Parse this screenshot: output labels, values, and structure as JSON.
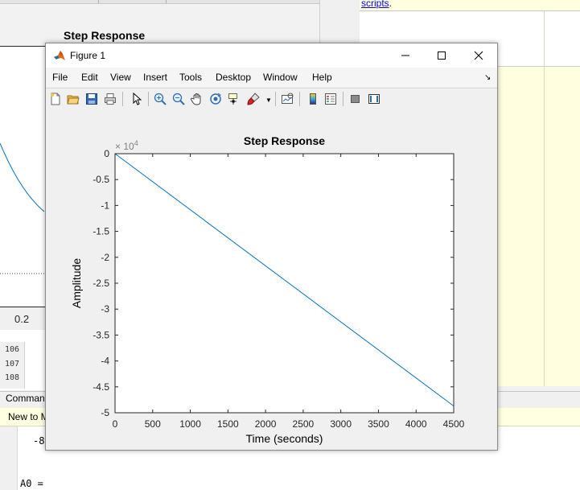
{
  "background": {
    "figure_title": "Step Response",
    "x_tick_visible": "0.2",
    "editor_line_numbers": [
      "106",
      "107",
      "108"
    ],
    "command_window_tab": "Comman",
    "new_to_banner": "New to M",
    "command_lines": [
      "-8",
      "A0 ="
    ],
    "help_link_fragment": "scripts",
    "help_link_period": "."
  },
  "window": {
    "title": "Figure 1",
    "menus": [
      "File",
      "Edit",
      "View",
      "Insert",
      "Tools",
      "Desktop",
      "Window",
      "Help"
    ]
  },
  "toolbar_icons": [
    "new-figure-icon",
    "open-file-icon",
    "save-icon",
    "print-icon",
    "edit-plot-arrow-icon",
    "zoom-in-icon",
    "zoom-out-icon",
    "pan-hand-icon",
    "rotate-3d-icon",
    "data-cursor-icon",
    "brush-icon",
    "link-plot-icon",
    "colorbar-icon",
    "legend-icon",
    "hide-plot-tools-icon",
    "show-plot-tools-icon"
  ],
  "colors": {
    "line": "#0072bd",
    "axes": "#262626",
    "plot_bg": "#ffffff",
    "figure_bg": "#f0f0f0"
  },
  "chart_data": {
    "type": "line",
    "title": "Step Response",
    "xlabel": "Time (seconds)",
    "ylabel": "Amplitude",
    "exponent_label": "× 10",
    "exponent_power": "4",
    "xlim": [
      0,
      4500
    ],
    "ylim": [
      -5,
      0
    ],
    "xticks": [
      "0",
      "500",
      "1000",
      "1500",
      "2000",
      "2500",
      "3000",
      "3500",
      "4000",
      "4500"
    ],
    "yticks": [
      "0",
      "-0.5",
      "-1",
      "-1.5",
      "-2",
      "-2.5",
      "-3",
      "-3.5",
      "-4",
      "-4.5",
      "-5"
    ],
    "series": [
      {
        "x": [
          0,
          4500
        ],
        "y": [
          0,
          -4.87
        ]
      }
    ],
    "grid": false
  }
}
